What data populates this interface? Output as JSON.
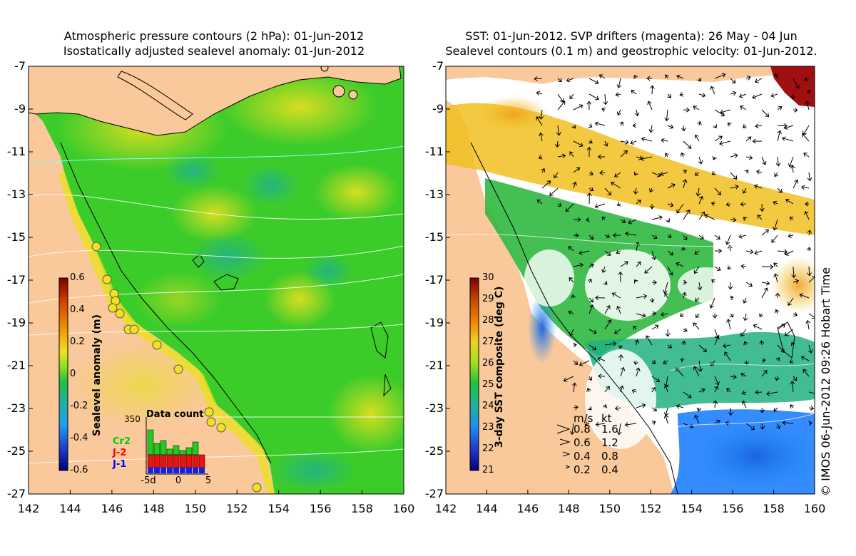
{
  "left_panel": {
    "title_line1": "Atmospheric pressure contours (2 hPa): 01-Jun-2012",
    "title_line2": "Isostatically adjusted sealevel anomaly: 01-Jun-2012",
    "colorbar": {
      "label": "Sealevel anomaly (m)",
      "ticks": [
        "0.6",
        "0.4",
        "0.2",
        "0",
        "-0.2",
        "-0.4",
        "-0.6"
      ],
      "min": -0.6,
      "max": 0.6
    },
    "data_count": {
      "title": "Data count",
      "max_label": "350",
      "x_ticks": [
        "-5d",
        "0",
        "5"
      ],
      "legend": [
        "Cr2",
        "J-2",
        "J-1"
      ],
      "legend_colors": [
        "#00cc00",
        "#ff0000",
        "#0000ff"
      ]
    }
  },
  "right_panel": {
    "title_line1": "SST: 01-Jun-2012. SVP drifters (magenta): 26 May - 04 Jun",
    "title_line2": "Sealevel contours (0.1 m) and geostrophic velocity: 01-Jun-2012.",
    "colorbar": {
      "label": "3-day SST composite (deg C)",
      "ticks": [
        "30",
        "29",
        "28",
        "27",
        "26",
        "25",
        "24",
        "23",
        "22",
        "21"
      ],
      "min": 21,
      "max": 30
    },
    "velocity_legend": {
      "header_ms": "m/s",
      "header_kt": "kt",
      "rows": [
        {
          "ms": "0.8",
          "kt": "1.6"
        },
        {
          "ms": "0.6",
          "kt": "1.2"
        },
        {
          "ms": "0.4",
          "kt": "0.8"
        },
        {
          "ms": "0.2",
          "kt": "0.4"
        }
      ]
    }
  },
  "axes": {
    "y_ticks": [
      "-7",
      "-9",
      "-11",
      "-13",
      "-15",
      "-17",
      "-19",
      "-21",
      "-23",
      "-25",
      "-27"
    ],
    "x_ticks": [
      "142",
      "144",
      "146",
      "148",
      "150",
      "152",
      "154",
      "156",
      "158",
      "160"
    ],
    "lon_range": [
      142,
      160
    ],
    "lat_range": [
      -27,
      -7
    ]
  },
  "copyright": "© IMOS 06-Jun-2012 09:26 Hobart Time",
  "colors": {
    "land": "#f9c89b",
    "sea_green": "#3ccc2a",
    "anomaly_high": "#f0e020",
    "sst_warm": "#f0c020",
    "sst_cool": "#1e80ff"
  }
}
